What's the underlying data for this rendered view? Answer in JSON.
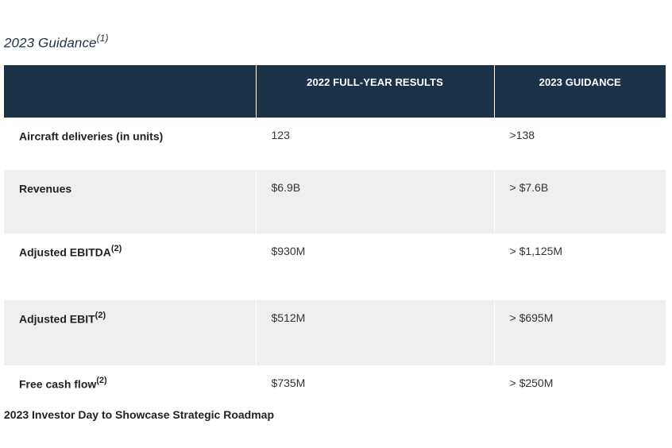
{
  "title": {
    "text": "2023 Guidance",
    "note": "(1)"
  },
  "table": {
    "headers": [
      "",
      "2022 FULL-YEAR RESULTS",
      "2023 GUIDANCE"
    ],
    "rows": [
      {
        "metric": "Aircraft deliveries (in units)",
        "note": "",
        "results_2022": "123",
        "guidance_2023": ">138"
      },
      {
        "metric": "Revenues",
        "note": "",
        "results_2022": "$6.9B",
        "guidance_2023": "> $7.6B"
      },
      {
        "metric": "Adjusted EBITDA",
        "note": "(2)",
        "results_2022": "$930M",
        "guidance_2023": "> $1,125M"
      },
      {
        "metric": "Adjusted EBIT",
        "note": "(2)",
        "results_2022": "$512M",
        "guidance_2023": "> $695M"
      },
      {
        "metric": "Free cash flow",
        "note": "(2)",
        "results_2022": "$735M",
        "guidance_2023": "> $250M"
      }
    ]
  },
  "subheading": "2023 Investor Day to Showcase Strategic Roadmap",
  "colors": {
    "header_bg": "#1d3249",
    "shaded_row": "#efefef",
    "title": "#1d3249"
  }
}
